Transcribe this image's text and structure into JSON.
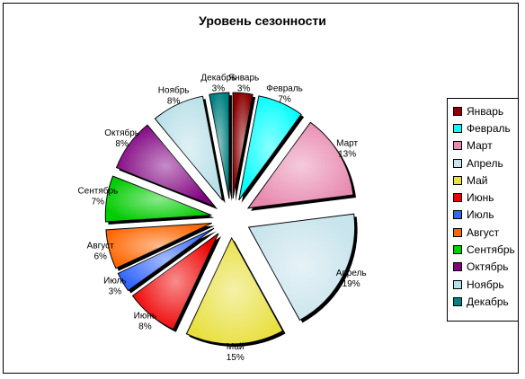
{
  "chart_data": {
    "type": "pie",
    "title": "Уровень сезонности",
    "legend_position": "right",
    "slices": [
      {
        "name": "Январь",
        "value": 3,
        "label": "3%",
        "color": "#8B0000"
      },
      {
        "name": "Февраль",
        "value": 7,
        "label": "7%",
        "color": "#00FFFF"
      },
      {
        "name": "Март",
        "value": 13,
        "label": "13%",
        "color": "#E88AB0"
      },
      {
        "name": "Апрель",
        "value": 19,
        "label": "19%",
        "color": "#C8E4EC"
      },
      {
        "name": "Май",
        "value": 15,
        "label": "15%",
        "color": "#E8E040"
      },
      {
        "name": "Июнь",
        "value": 8,
        "label": "8%",
        "color": "#EE0000"
      },
      {
        "name": "Июль",
        "value": 3,
        "label": "3%",
        "color": "#3366FF"
      },
      {
        "name": "Август",
        "value": 6,
        "label": "6%",
        "color": "#FF6600"
      },
      {
        "name": "Сентябрь",
        "value": 7,
        "label": "7%",
        "color": "#00CC00"
      },
      {
        "name": "Октябрь",
        "value": 8,
        "label": "8%",
        "color": "#800080"
      },
      {
        "name": "Ноябрь",
        "value": 8,
        "label": "8%",
        "color": "#B8E0E8"
      },
      {
        "name": "Декабрь",
        "value": 3,
        "label": "3%",
        "color": "#008080"
      }
    ]
  }
}
